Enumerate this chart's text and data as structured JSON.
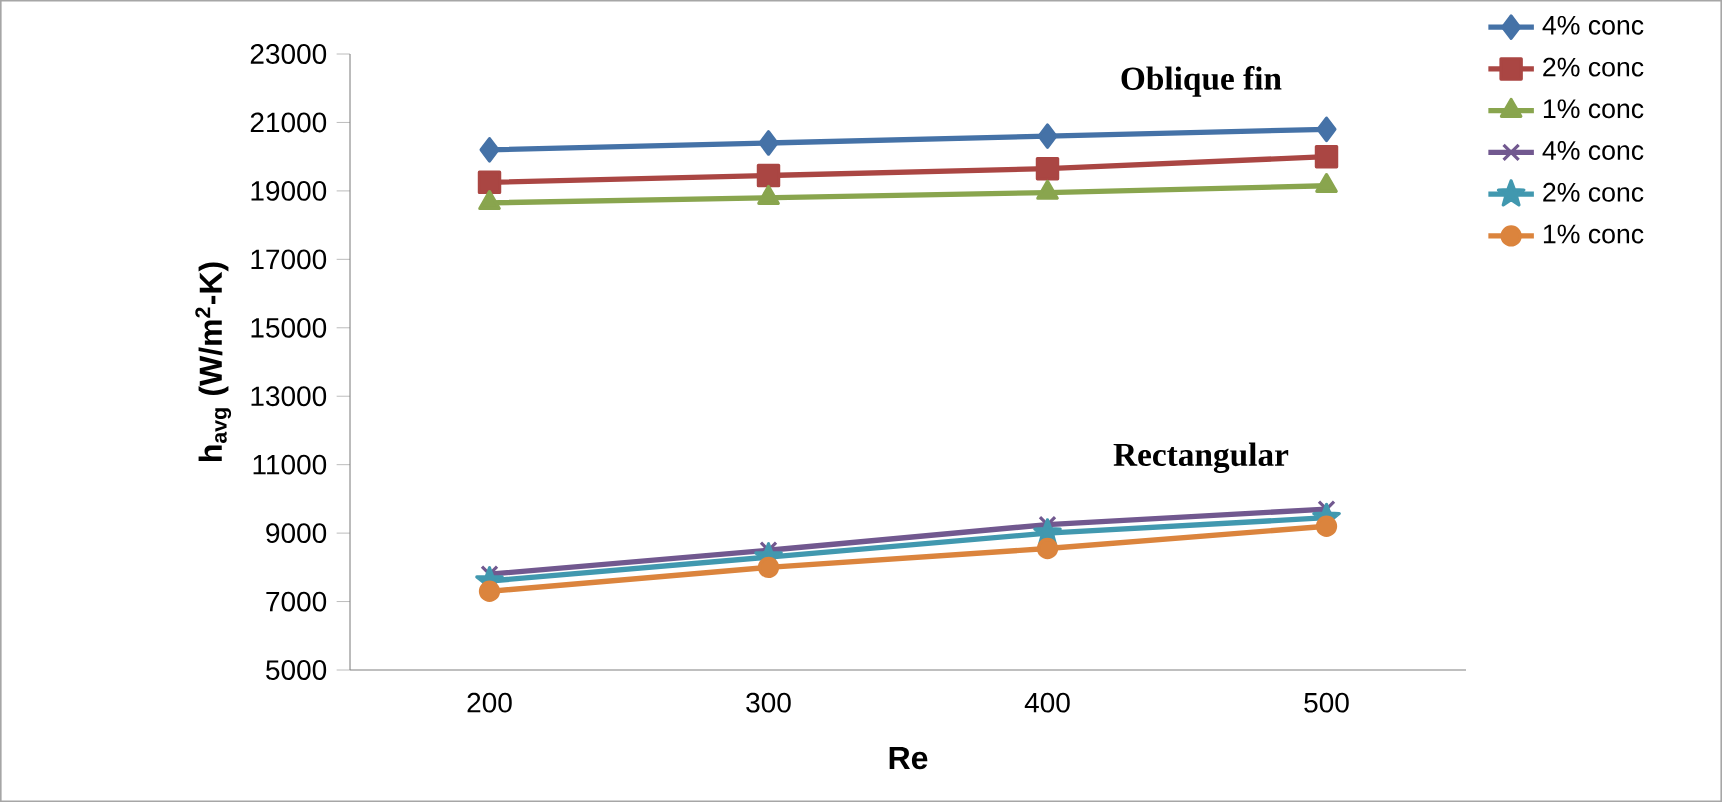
{
  "chart_data": {
    "type": "line",
    "xlabel": "Re",
    "ylabel": "h$_{avg}$ (W/m$^{2}$-K)",
    "categories": [
      "200",
      "300",
      "400",
      "500"
    ],
    "ylim": [
      5000,
      23000
    ],
    "yticks": [
      5000,
      7000,
      9000,
      11000,
      13000,
      15000,
      17000,
      19000,
      21000,
      23000
    ],
    "grid": false,
    "legend": "right",
    "line_style": "solid",
    "annotations": [
      "Oblique fin",
      "Rectangular"
    ],
    "series": [
      {
        "name": "4% conc",
        "color": "#4572a7",
        "marker": "diamond",
        "values": [
          20200,
          20400,
          20600,
          20800
        ]
      },
      {
        "name": "2% conc",
        "color": "#aa4643",
        "marker": "square",
        "values": [
          19250,
          19450,
          19650,
          20000
        ]
      },
      {
        "name": "1% conc",
        "color": "#89a54e",
        "marker": "triangle",
        "values": [
          18650,
          18800,
          18950,
          19150
        ]
      },
      {
        "name": "4% conc",
        "color": "#71588f",
        "marker": "cross",
        "values": [
          7800,
          8500,
          9250,
          9700
        ]
      },
      {
        "name": "2% conc",
        "color": "#4198af",
        "marker": "star",
        "values": [
          7600,
          8300,
          9000,
          9450
        ]
      },
      {
        "name": "1% conc",
        "color": "#db843d",
        "marker": "circle",
        "values": [
          7300,
          8000,
          8550,
          9200
        ]
      }
    ]
  }
}
